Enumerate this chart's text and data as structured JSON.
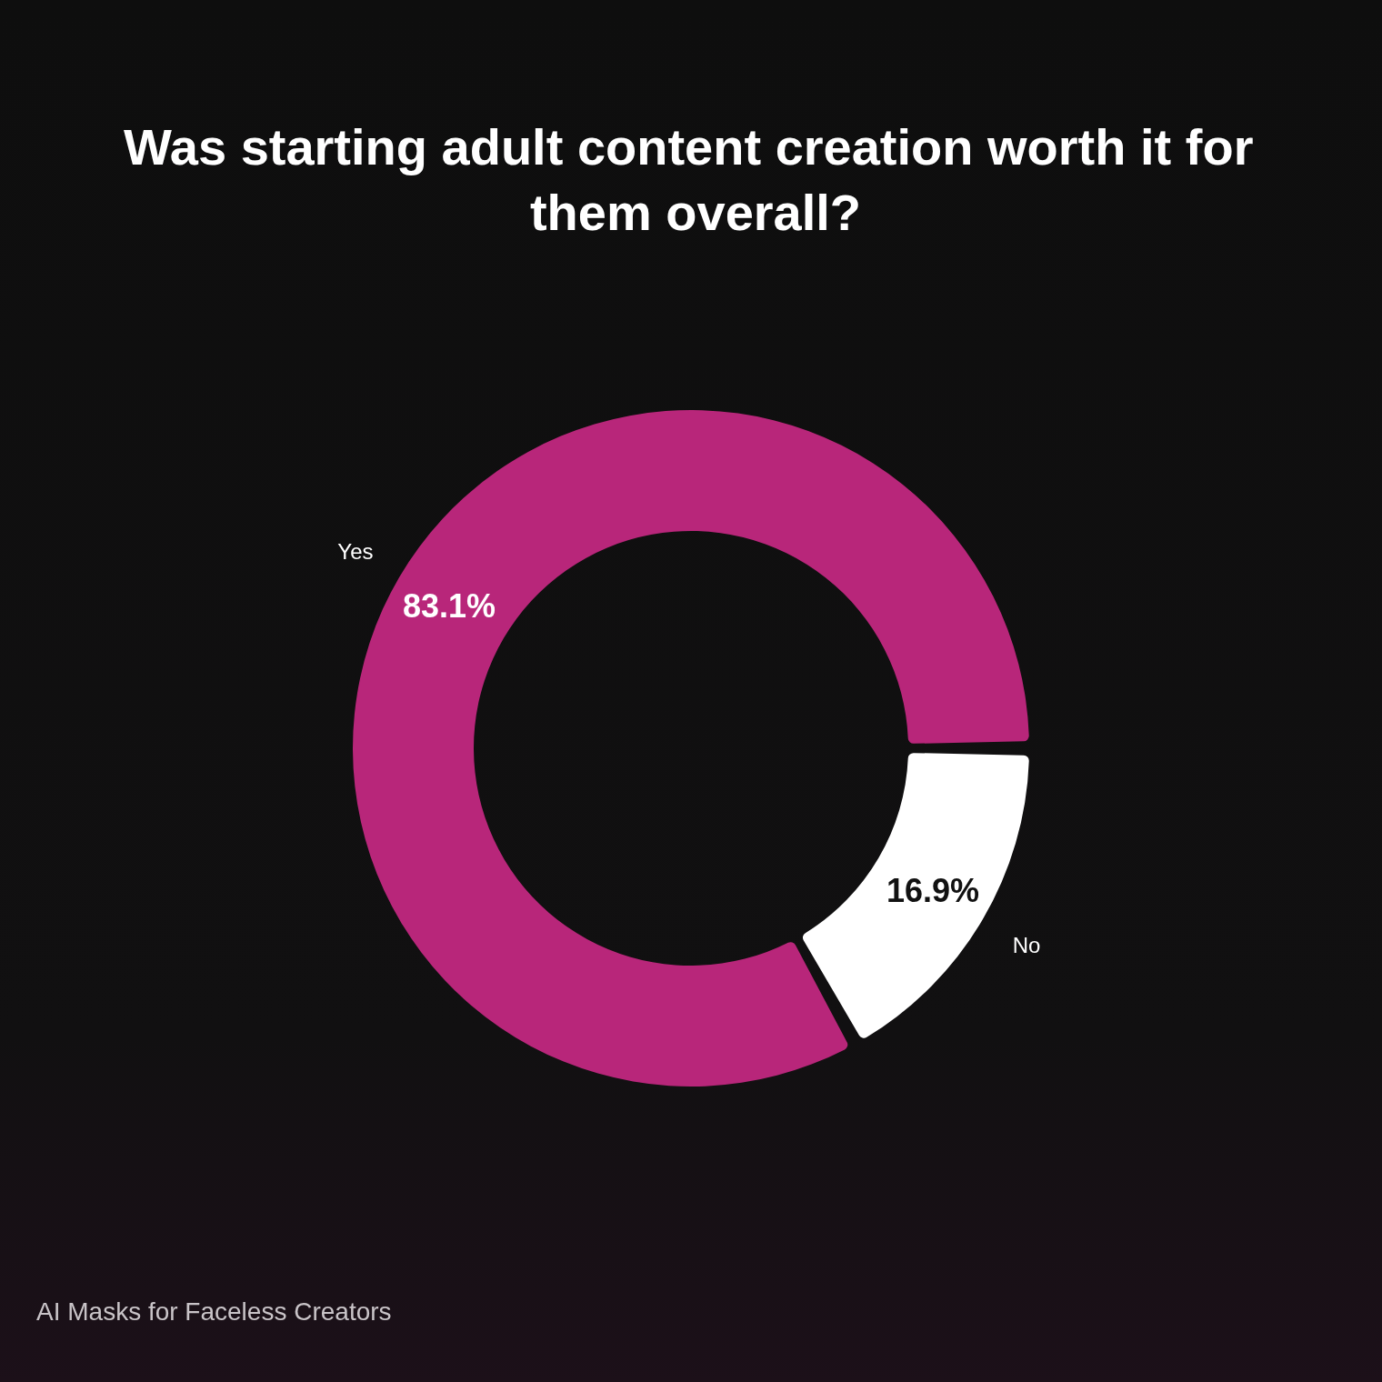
{
  "chart_data": {
    "type": "donut",
    "title": "Was starting adult content creation worth it for them overall?",
    "categories": [
      "Yes",
      "No"
    ],
    "values": [
      83.1,
      16.9
    ],
    "colors": [
      "#b8267a",
      "#ffffff"
    ],
    "value_labels": [
      "83.1%",
      "16.9%"
    ],
    "annotations": [
      "AI Masks for Faceless Creators"
    ]
  }
}
